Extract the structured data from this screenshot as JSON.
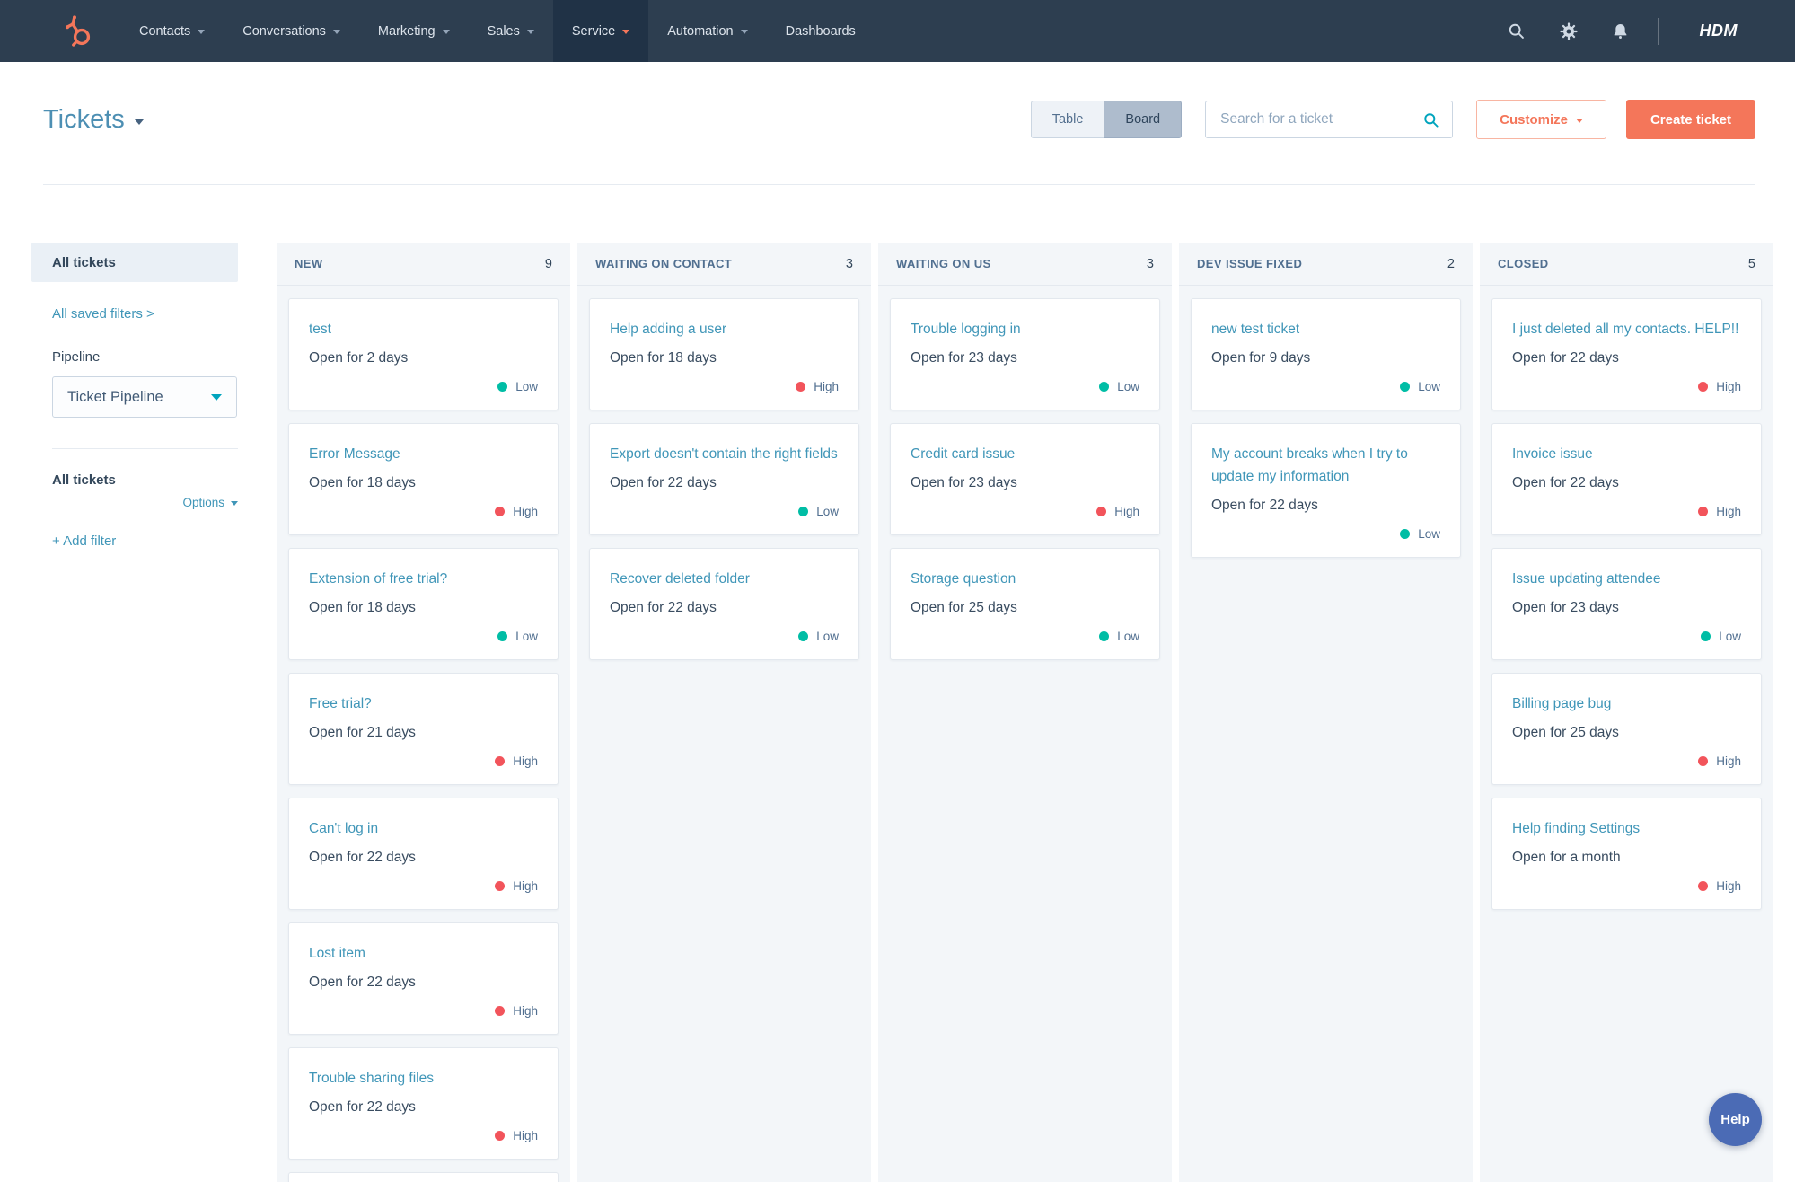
{
  "nav": {
    "logo": "hubspot-sprocket-logo",
    "items": [
      {
        "label": "Contacts",
        "caret": true
      },
      {
        "label": "Conversations",
        "caret": true
      },
      {
        "label": "Marketing",
        "caret": true
      },
      {
        "label": "Sales",
        "caret": true
      },
      {
        "label": "Service",
        "caret": true
      },
      {
        "label": "Automation",
        "caret": true
      },
      {
        "label": "Dashboards",
        "caret": false
      }
    ],
    "active_item": "Service",
    "right_icons": [
      "search-icon",
      "settings-icon",
      "notifications-icon"
    ],
    "account_label": "HDM"
  },
  "header": {
    "title": "Tickets",
    "view_toggle": {
      "options": [
        "Table",
        "Board"
      ],
      "selected": "Board"
    },
    "search_placeholder": "Search for a ticket",
    "customize_label": "Customize",
    "create_ticket_label": "Create ticket"
  },
  "sidebar": {
    "selected_view": "All tickets",
    "saved_filters_link": "All saved filters >",
    "pipeline_label": "Pipeline",
    "pipeline_value": "Ticket Pipeline",
    "filter_group_label": "All tickets",
    "options_label": "Options",
    "add_filter_label": "+ Add filter"
  },
  "board": {
    "columns": [
      {
        "name": "NEW",
        "count": 9,
        "partial_bottom_card": true,
        "cards": [
          {
            "title": "test",
            "status": "Open for 2 days",
            "priority": "Low"
          },
          {
            "title": "Error Message",
            "status": "Open for 18 days",
            "priority": "High"
          },
          {
            "title": "Extension of free trial?",
            "status": "Open for 18 days",
            "priority": "Low"
          },
          {
            "title": "Free trial?",
            "status": "Open for 21 days",
            "priority": "High"
          },
          {
            "title": "Can't log in",
            "status": "Open for 22 days",
            "priority": "High"
          },
          {
            "title": "Lost item",
            "status": "Open for 22 days",
            "priority": "High"
          },
          {
            "title": "Trouble sharing files",
            "status": "Open for 22 days",
            "priority": "High"
          }
        ]
      },
      {
        "name": "WAITING ON CONTACT",
        "count": 3,
        "partial_bottom_card": false,
        "cards": [
          {
            "title": "Help adding a user",
            "status": "Open for 18 days",
            "priority": "High"
          },
          {
            "title": "Export doesn't contain the right fields",
            "status": "Open for 22 days",
            "priority": "Low"
          },
          {
            "title": "Recover deleted folder",
            "status": "Open for 22 days",
            "priority": "Low"
          }
        ]
      },
      {
        "name": "WAITING ON US",
        "count": 3,
        "partial_bottom_card": false,
        "cards": [
          {
            "title": "Trouble logging in",
            "status": "Open for 23 days",
            "priority": "Low"
          },
          {
            "title": "Credit card issue",
            "status": "Open for 23 days",
            "priority": "High"
          },
          {
            "title": "Storage question",
            "status": "Open for 25 days",
            "priority": "Low"
          }
        ]
      },
      {
        "name": "DEV ISSUE FIXED",
        "count": 2,
        "partial_bottom_card": false,
        "cards": [
          {
            "title": "new test ticket",
            "status": "Open for 9 days",
            "priority": "Low"
          },
          {
            "title": "My account breaks when I try to update my information",
            "status": "Open for 22 days",
            "priority": "Low"
          }
        ]
      },
      {
        "name": "CLOSED",
        "count": 5,
        "partial_bottom_card": false,
        "cards": [
          {
            "title": "I just deleted all my contacts. HELP!!",
            "status": "Open for 22 days",
            "priority": "High"
          },
          {
            "title": "Invoice issue",
            "status": "Open for 22 days",
            "priority": "High"
          },
          {
            "title": "Issue updating attendee",
            "status": "Open for 23 days",
            "priority": "Low"
          },
          {
            "title": "Billing page bug",
            "status": "Open for 25 days",
            "priority": "High"
          },
          {
            "title": "Help finding Settings",
            "status": "Open for a month",
            "priority": "High"
          }
        ]
      }
    ]
  },
  "help_button_label": "Help",
  "colors": {
    "accent": "#f4765a",
    "priority_low": "#00bda5",
    "priority_high": "#f2545b",
    "link": "#4096b8",
    "navbar": "#2d3e50",
    "help_button": "#4b6bb5"
  }
}
